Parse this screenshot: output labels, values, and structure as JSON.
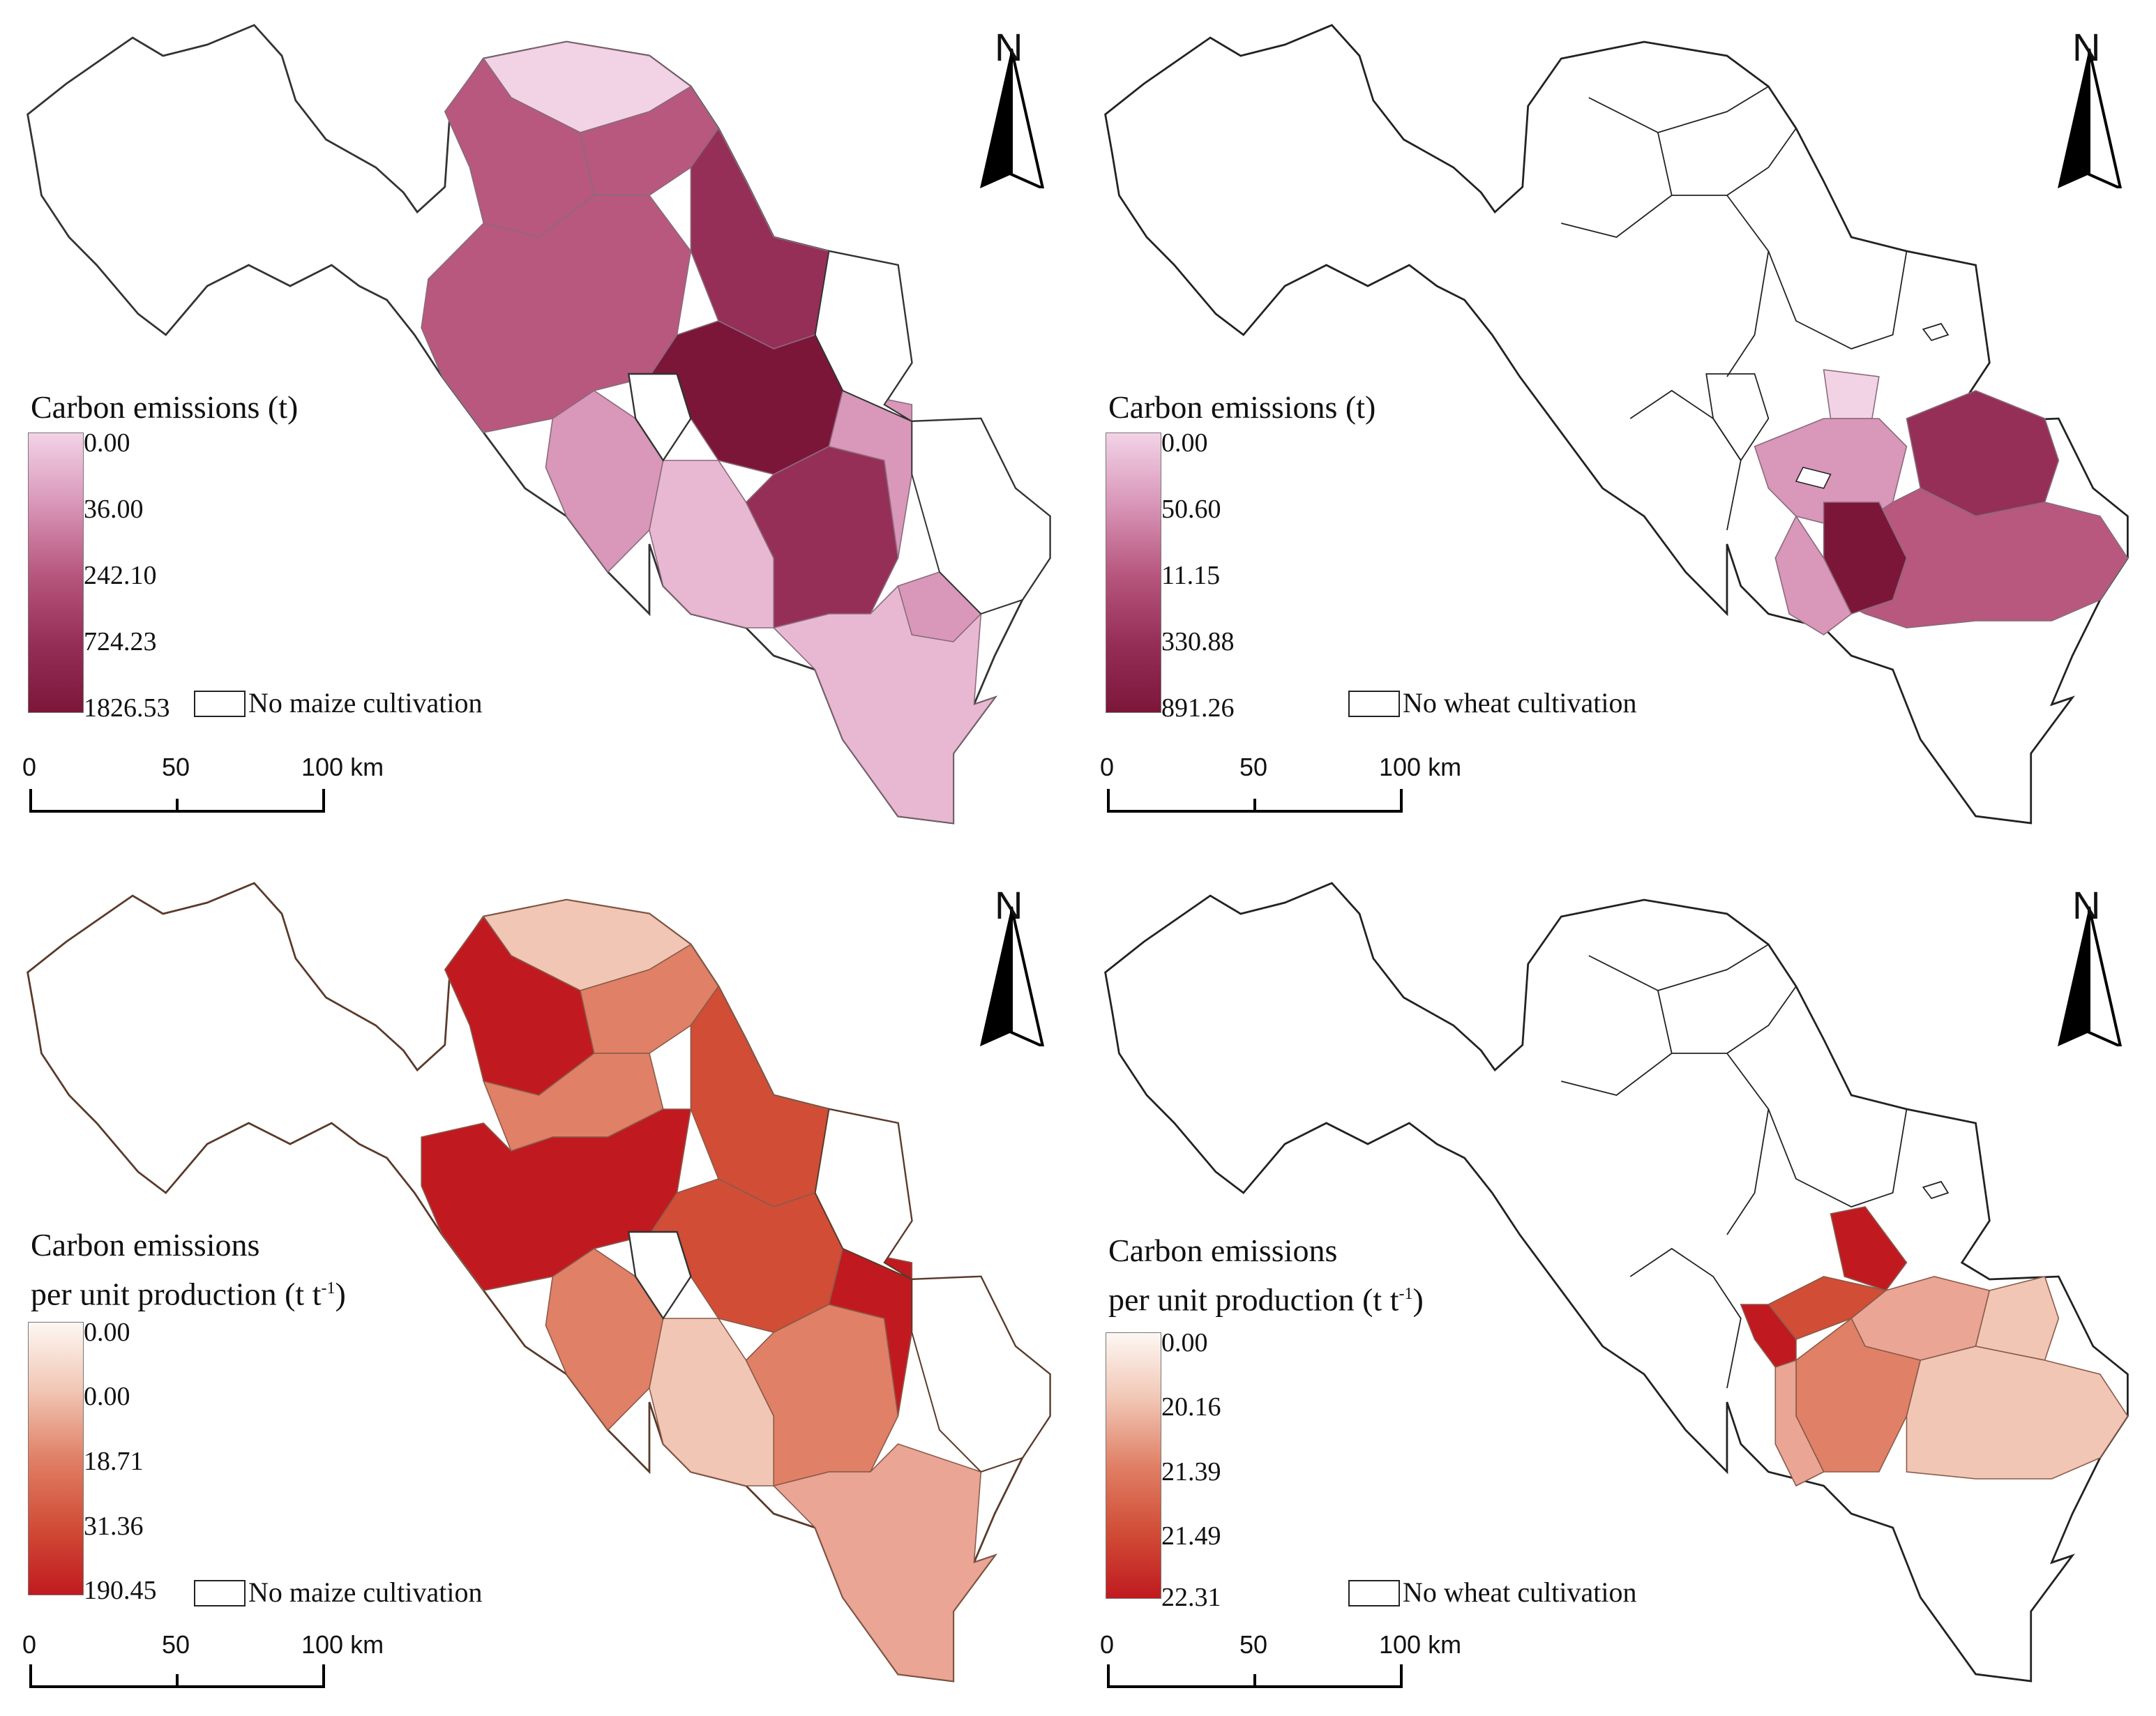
{
  "north_label": "N",
  "scale": {
    "ticks": [
      "0",
      "50",
      "100 km"
    ]
  },
  "colors": {
    "maize_total_ramp": [
      "#f2d3e6",
      "#d997b9",
      "#b8587f",
      "#962f58",
      "#7c1639"
    ],
    "wheat_total_ramp": [
      "#f2d3e6",
      "#d997b9",
      "#b8587f",
      "#962f58",
      "#7c1639"
    ],
    "maize_unit_ramp": [
      "#fdf7f3",
      "#f1c6b4",
      "#e08066",
      "#d14d36",
      "#c01a20"
    ],
    "wheat_unit_ramp": [
      "#fdf7f3",
      "#f1c6b4",
      "#e08066",
      "#d14d36",
      "#c01a20"
    ]
  },
  "panels": {
    "maize_total": {
      "legend_title": "Carbon emissions (t)",
      "classes": [
        "0.00",
        "36.00",
        "242.10",
        "724.23",
        "1826.53"
      ],
      "no_data_label": "No maize cultivation"
    },
    "wheat_total": {
      "legend_title": "Carbon emissions (t)",
      "classes": [
        "0.00",
        "50.60",
        "11.15",
        "330.88",
        "891.26"
      ],
      "no_data_label": "No wheat cultivation"
    },
    "maize_unit": {
      "legend_title_line1": "Carbon emissions",
      "legend_title_line2": "per unit production (t t",
      "legend_title_sup": "-1",
      "legend_title_close": ")",
      "classes": [
        "0.00",
        "0.00",
        "18.71",
        "31.36",
        "190.45"
      ],
      "no_data_label": "No maize cultivation"
    },
    "wheat_unit": {
      "legend_title_line1": "Carbon emissions",
      "legend_title_line2": "per unit production  (t t",
      "legend_title_sup": "-1",
      "legend_title_close": ")",
      "classes": [
        "0.00",
        "20.16",
        "21.39",
        "21.49",
        "22.31"
      ],
      "no_data_label": "No wheat cultivation"
    }
  }
}
